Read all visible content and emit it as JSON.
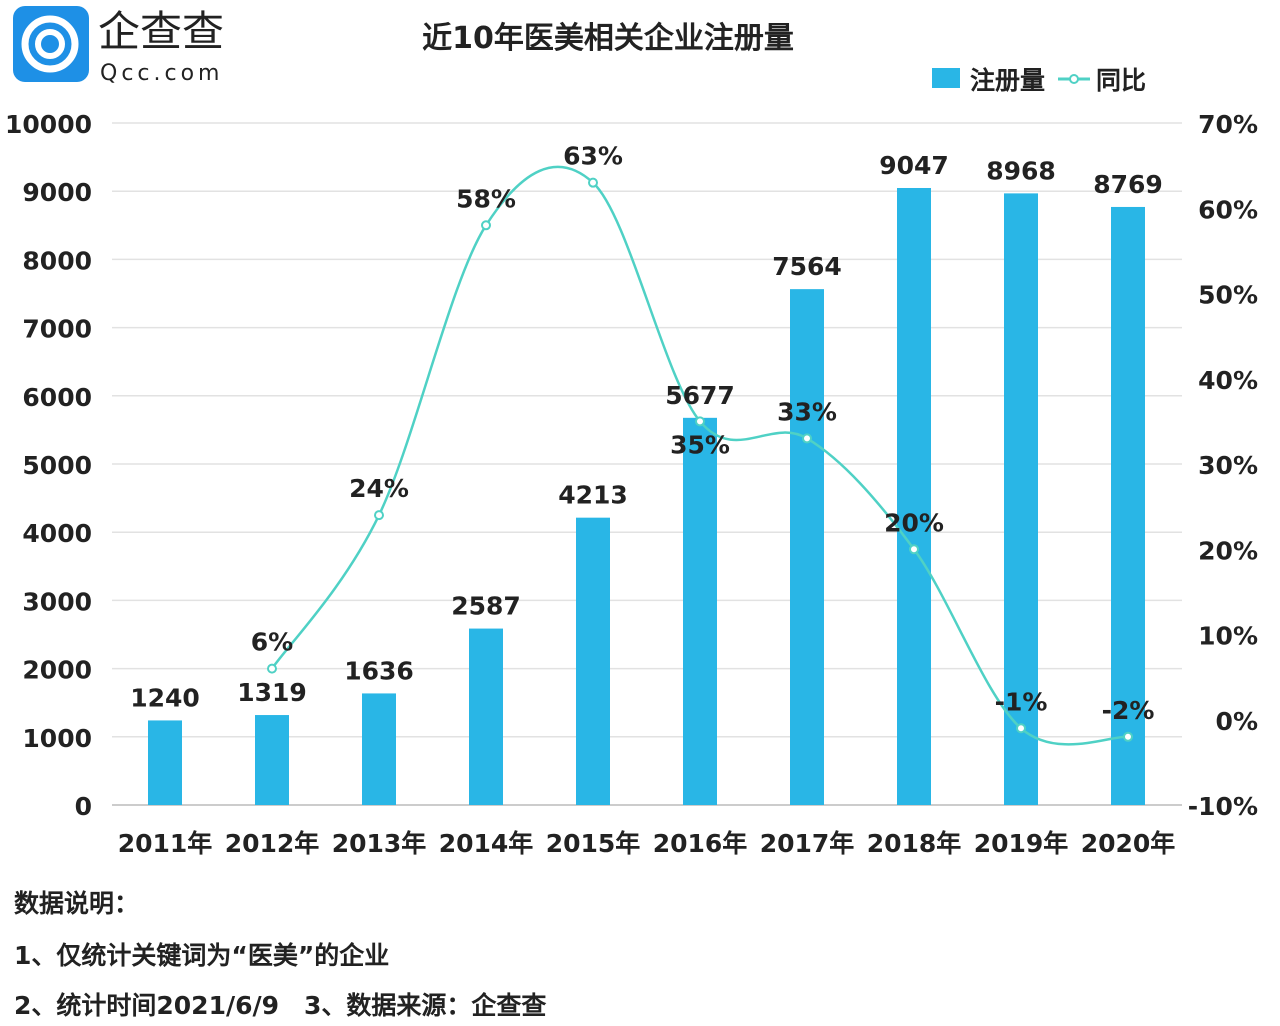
{
  "logo": {
    "cn": "企查查",
    "en": "Qcc.com",
    "color": "#1e90e6"
  },
  "chart_data": {
    "type": "bar+line",
    "title": "近10年医美相关企业注册量",
    "categories": [
      "2011年",
      "2012年",
      "2013年",
      "2014年",
      "2015年",
      "2016年",
      "2017年",
      "2018年",
      "2019年",
      "2020年"
    ],
    "series": [
      {
        "name": "注册量",
        "type": "bar",
        "axis": "left",
        "color": "#29b6e6",
        "values": [
          1240,
          1319,
          1636,
          2587,
          4213,
          5677,
          7564,
          9047,
          8968,
          8769
        ],
        "labels": [
          "1240",
          "1319",
          "1636",
          "2587",
          "4213",
          "5677",
          "7564",
          "9047",
          "8968",
          "8769"
        ]
      },
      {
        "name": "同比",
        "type": "line",
        "axis": "right",
        "color": "#4fd1c5",
        "values": [
          null,
          6,
          24,
          58,
          63,
          35,
          33,
          20,
          -1,
          -2
        ],
        "labels": [
          "",
          "6%",
          "24%",
          "58%",
          "63%",
          "35%",
          "33%",
          "20%",
          "-1%",
          "-2%"
        ]
      }
    ],
    "left_axis": {
      "ylim": [
        0,
        10000
      ],
      "ticks": [
        "0",
        "1000",
        "2000",
        "3000",
        "4000",
        "5000",
        "6000",
        "7000",
        "8000",
        "9000",
        "10000"
      ]
    },
    "right_axis": {
      "ylim": [
        -10,
        70
      ],
      "ticks": [
        "-10%",
        "0%",
        "10%",
        "20%",
        "30%",
        "40%",
        "50%",
        "60%",
        "70%"
      ]
    },
    "grid": true,
    "legend": "top-right"
  },
  "notes": {
    "heading": "数据说明：",
    "line1": "1、仅统计关键词为“医美”的企业",
    "line2": "2、统计时间2021/6/9　3、数据来源：企查查"
  }
}
